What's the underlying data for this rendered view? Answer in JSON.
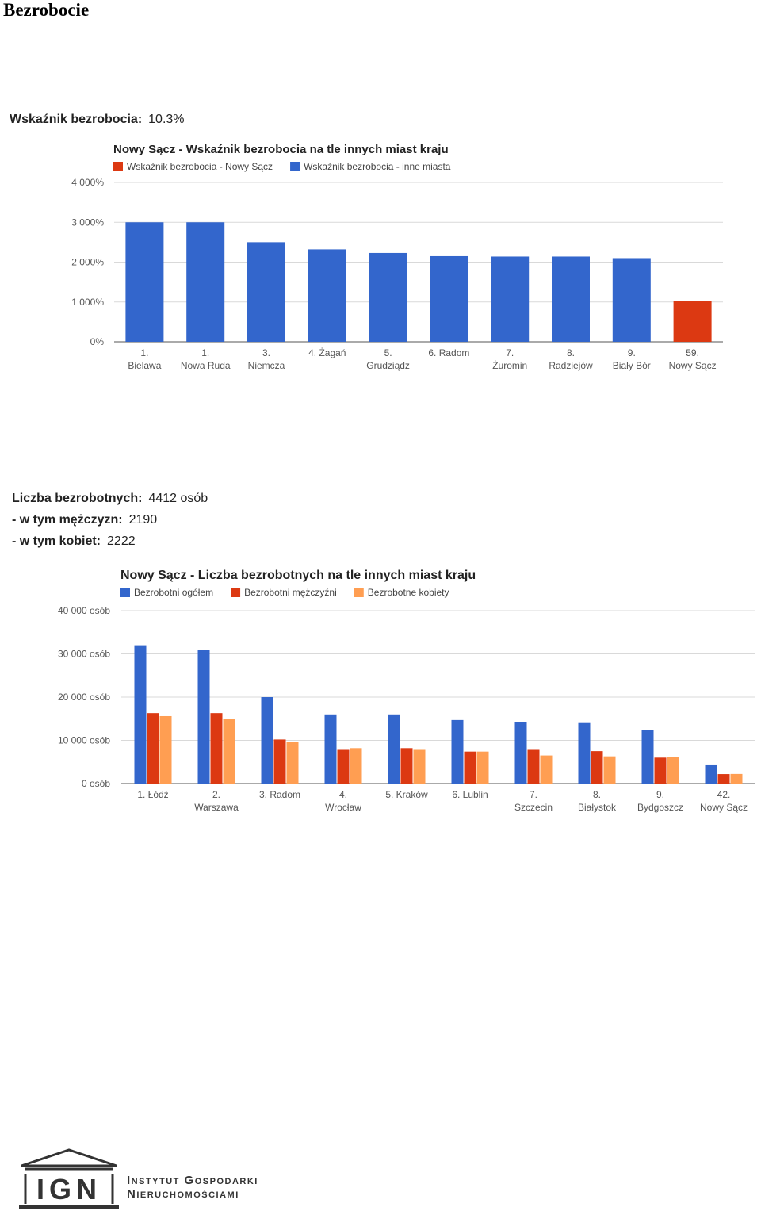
{
  "page": {
    "title": "Bezrobocie"
  },
  "stats1": {
    "rate_label": "Wskaźnik bezrobocia:",
    "rate_value": "10.3%"
  },
  "stats2": {
    "total_label": "Liczba bezrobotnych:",
    "total_value": "4412 osób",
    "men_label": "- w tym mężczyzn:",
    "men_value": "2190",
    "women_label": "- w tym kobiet:",
    "women_value": "2222"
  },
  "logo": {
    "line1": "Instytut Gospodarki",
    "line2": "Nieruchomościami",
    "letters": "IGN"
  },
  "chart_data": [
    {
      "type": "bar",
      "title": "Nowy Sącz - Wskaźnik bezrobocia na tle innych miast kraju",
      "categories": [
        "1. Bielawa",
        "1. Nowa Ruda",
        "3. Niemcza",
        "4. Żagań",
        "5. Grudziądz",
        "6. Radom",
        "7. Żuromin",
        "8. Radziejów",
        "9. Biały Bór",
        "59. Nowy Sącz"
      ],
      "legend": [
        {
          "name": "Wskaźnik bezrobocia - Nowy Sącz",
          "color": "#dc3912"
        },
        {
          "name": "Wskaźnik bezrobocia - inne miasta",
          "color": "#3366cc"
        }
      ],
      "values": [
        3000,
        3000,
        2500,
        2320,
        2230,
        2150,
        2140,
        2140,
        2100,
        1030
      ],
      "colors": [
        "#3366cc",
        "#3366cc",
        "#3366cc",
        "#3366cc",
        "#3366cc",
        "#3366cc",
        "#3366cc",
        "#3366cc",
        "#3366cc",
        "#dc3912"
      ],
      "yticks": [
        "0%",
        "1 000%",
        "2 000%",
        "3 000%",
        "4 000%"
      ],
      "ylim": [
        0,
        4000
      ],
      "grid": true,
      "legend_position": "top"
    },
    {
      "type": "bar",
      "title": "Nowy Sącz - Liczba bezrobotnych na tle innych miast kraju",
      "categories": [
        "1. Łódź",
        "2. Warszawa",
        "3. Radom",
        "4. Wrocław",
        "5. Kraków",
        "6. Lublin",
        "7. Szczecin",
        "8. Białystok",
        "9. Bydgoszcz",
        "42. Nowy Sącz"
      ],
      "series": [
        {
          "name": "Bezrobotni ogółem",
          "color": "#3366cc",
          "values": [
            32000,
            31000,
            20000,
            16000,
            16000,
            14700,
            14300,
            14000,
            12300,
            4412
          ]
        },
        {
          "name": "Bezrobotni mężczyźni",
          "color": "#dc3912",
          "values": [
            16300,
            16300,
            10200,
            7800,
            8200,
            7400,
            7800,
            7500,
            6000,
            2190
          ]
        },
        {
          "name": "Bezrobotne kobiety",
          "color": "#ff9e52",
          "values": [
            15600,
            15000,
            9700,
            8200,
            7800,
            7400,
            6500,
            6300,
            6200,
            2222
          ]
        }
      ],
      "yticks": [
        "0 osób",
        "10 000 osób",
        "20 000 osób",
        "30 000 osób",
        "40 000 osób"
      ],
      "ylim": [
        0,
        40000
      ],
      "grid": true,
      "legend_position": "top"
    }
  ]
}
